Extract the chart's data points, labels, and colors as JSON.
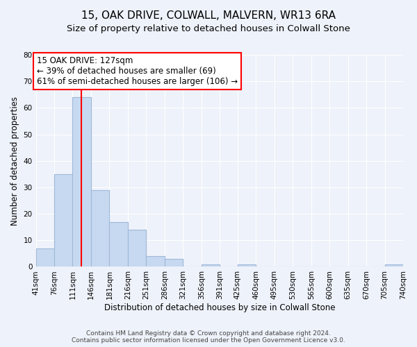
{
  "title": "15, OAK DRIVE, COLWALL, MALVERN, WR13 6RA",
  "subtitle": "Size of property relative to detached houses in Colwall Stone",
  "xlabel": "Distribution of detached houses by size in Colwall Stone",
  "ylabel": "Number of detached properties",
  "bin_labels": [
    "41sqm",
    "76sqm",
    "111sqm",
    "146sqm",
    "181sqm",
    "216sqm",
    "251sqm",
    "286sqm",
    "321sqm",
    "356sqm",
    "391sqm",
    "425sqm",
    "460sqm",
    "495sqm",
    "530sqm",
    "565sqm",
    "600sqm",
    "635sqm",
    "670sqm",
    "705sqm",
    "740sqm"
  ],
  "bin_edges": [
    41,
    76,
    111,
    146,
    181,
    216,
    251,
    286,
    321,
    356,
    391,
    425,
    460,
    495,
    530,
    565,
    600,
    635,
    670,
    705,
    740
  ],
  "bar_heights": [
    7,
    35,
    64,
    29,
    17,
    14,
    4,
    3,
    0,
    1,
    0,
    1,
    0,
    0,
    0,
    0,
    0,
    0,
    0,
    1
  ],
  "bar_color": "#c6d9f0",
  "bar_edge_color": "#a0b8d8",
  "property_line_x": 127,
  "property_line_color": "red",
  "annotation_text": "15 OAK DRIVE: 127sqm\n← 39% of detached houses are smaller (69)\n61% of semi-detached houses are larger (106) →",
  "annotation_box_color": "white",
  "annotation_box_edge": "red",
  "ylim": [
    0,
    80
  ],
  "background_color": "#eef2fa",
  "footer_text": "Contains HM Land Registry data © Crown copyright and database right 2024.\nContains public sector information licensed under the Open Government Licence v3.0.",
  "title_fontsize": 11,
  "subtitle_fontsize": 9.5,
  "axis_label_fontsize": 8.5,
  "tick_fontsize": 7.5,
  "annotation_fontsize": 8.5
}
